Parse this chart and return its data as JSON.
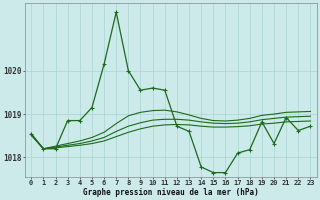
{
  "bg_color": "#cceaea",
  "grid_color": "#aad4d4",
  "line_color": "#1a6b1a",
  "title": "Graphe pression niveau de la mer (hPa)",
  "hours": [
    0,
    1,
    2,
    3,
    4,
    5,
    6,
    7,
    8,
    9,
    10,
    11,
    12,
    13,
    14,
    15,
    16,
    17,
    18,
    19,
    20,
    21,
    22,
    23
  ],
  "ylim": [
    1017.55,
    1021.55
  ],
  "yticks": [
    1018,
    1019,
    1020
  ],
  "series_main": [
    1018.55,
    1018.2,
    1018.2,
    1018.85,
    1018.85,
    1019.15,
    1020.15,
    1021.35,
    1020.0,
    1019.55,
    1019.6,
    1019.55,
    1018.72,
    1018.6,
    1017.78,
    1017.65,
    1017.65,
    1018.1,
    1018.18,
    1018.82,
    1018.32,
    1018.92,
    1018.62,
    1018.72
  ],
  "series_a": [
    1018.52,
    1018.2,
    1018.22,
    1018.25,
    1018.28,
    1018.32,
    1018.38,
    1018.48,
    1018.58,
    1018.66,
    1018.72,
    1018.75,
    1018.76,
    1018.75,
    1018.72,
    1018.7,
    1018.7,
    1018.71,
    1018.73,
    1018.77,
    1018.79,
    1018.82,
    1018.83,
    1018.84
  ],
  "series_b": [
    1018.52,
    1018.2,
    1018.24,
    1018.28,
    1018.32,
    1018.38,
    1018.46,
    1018.6,
    1018.72,
    1018.8,
    1018.86,
    1018.88,
    1018.88,
    1018.86,
    1018.82,
    1018.79,
    1018.78,
    1018.79,
    1018.82,
    1018.87,
    1018.9,
    1018.93,
    1018.94,
    1018.95
  ],
  "series_c": [
    1018.52,
    1018.2,
    1018.26,
    1018.32,
    1018.38,
    1018.46,
    1018.58,
    1018.78,
    1018.96,
    1019.04,
    1019.08,
    1019.09,
    1019.05,
    1018.98,
    1018.9,
    1018.85,
    1018.84,
    1018.86,
    1018.9,
    1018.97,
    1019.0,
    1019.04,
    1019.05,
    1019.06
  ],
  "lw": 0.8,
  "lw_main": 0.9,
  "markersize": 3.5,
  "tick_fontsize": 5.0,
  "xlabel_fontsize": 5.5
}
